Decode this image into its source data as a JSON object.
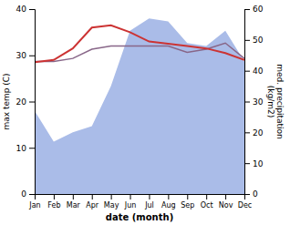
{
  "chart_data": {
    "type": "line",
    "categories": [
      "Jan",
      "Feb",
      "Mar",
      "Apr",
      "May",
      "Jun",
      "Jul",
      "Aug",
      "Sep",
      "Oct",
      "Nov",
      "Dec"
    ],
    "xlabel": "date (month)",
    "ylabel": "max temp (C)",
    "y2label": "med. precipitation\n(kg/m2)",
    "ylim": [
      0,
      40
    ],
    "yticks": [
      0,
      10,
      20,
      30,
      40
    ],
    "y2lim": [
      0,
      60
    ],
    "y2ticks": [
      0,
      10,
      20,
      30,
      40,
      50,
      60
    ],
    "grid": false,
    "series": [
      {
        "type": "area",
        "axis": "y2",
        "color": "#aabce8",
        "values": [
          27,
          17,
          20,
          22,
          35,
          53,
          57,
          56,
          49,
          48,
          53,
          43
        ]
      },
      {
        "type": "line",
        "axis": "y2",
        "color": "#886688",
        "values": [
          43,
          43,
          44,
          47,
          48,
          48,
          48,
          48,
          46,
          47,
          49,
          44
        ]
      },
      {
        "type": "line",
        "axis": "y",
        "color": "#cc3333",
        "values": [
          28.5,
          29.0,
          31.5,
          36.0,
          36.5,
          35.0,
          33.0,
          32.5,
          32.0,
          31.5,
          30.5,
          29.0
        ]
      }
    ]
  }
}
